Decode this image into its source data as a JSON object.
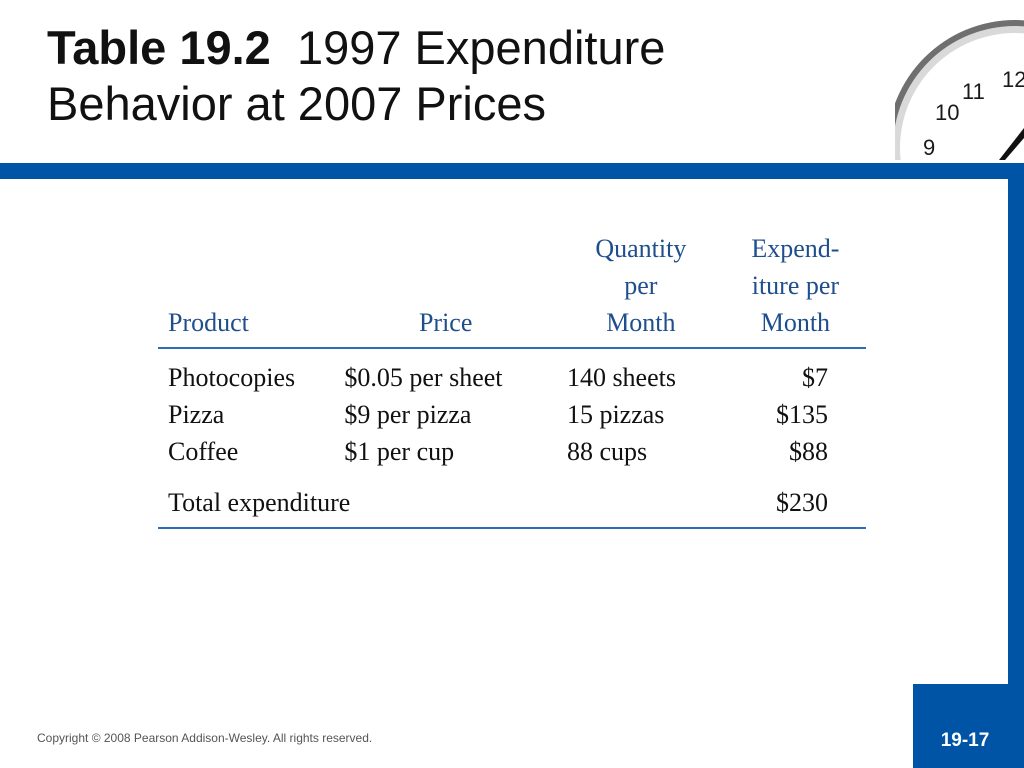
{
  "slide": {
    "title_bold": "Table 19.2",
    "title_rest": "1997 Expenditure Behavior at 2007 Prices",
    "copyright": "Copyright © 2008 Pearson Addison-Wesley. All rights reserved.",
    "page_number": "19-17"
  },
  "table": {
    "headers": {
      "product": "Product",
      "price": "Price",
      "quantity": [
        "Quantity",
        "per",
        "Month"
      ],
      "expenditure": [
        "Expend-",
        "iture per",
        "Month"
      ]
    },
    "rows": [
      {
        "product": "Photocopies",
        "price": "$0.05 per sheet",
        "quantity": "140 sheets",
        "expenditure": "$7"
      },
      {
        "product": "Pizza",
        "price": "$9 per pizza",
        "quantity": "15 pizzas",
        "expenditure": "$135"
      },
      {
        "product": "Coffee",
        "price": "$1 per cup",
        "quantity": "88 cups",
        "expenditure": "$88"
      }
    ],
    "total": {
      "label": "Total expenditure",
      "expenditure": "$230"
    }
  },
  "clock": {
    "numerals": [
      "12",
      "11",
      "10",
      "9"
    ]
  },
  "colors": {
    "accent_blue": "#0054a6",
    "header_text": "#1f4e8c",
    "rule": "#2e6cb5"
  }
}
